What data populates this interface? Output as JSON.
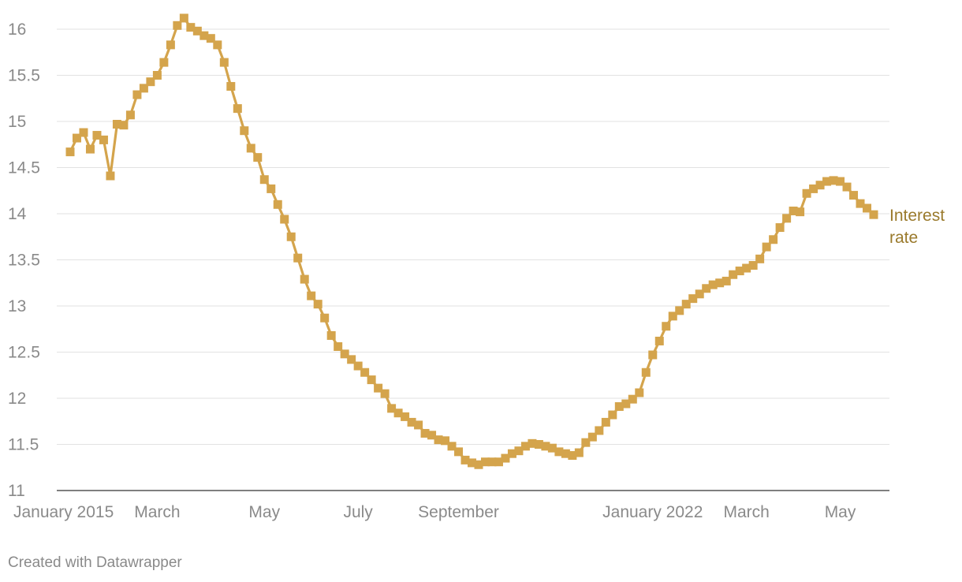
{
  "chart_data": {
    "type": "line",
    "title": "",
    "xlabel": "",
    "ylabel": "",
    "ylim": [
      11,
      16.2
    ],
    "yticks": [
      11,
      11.5,
      12,
      12.5,
      13,
      13.5,
      14,
      14.5,
      15,
      15.5,
      16
    ],
    "xticks": [
      {
        "label": "January 2015",
        "index": 0
      },
      {
        "label": "March",
        "index": 13
      },
      {
        "label": "May",
        "index": 29
      },
      {
        "label": "July",
        "index": 43
      },
      {
        "label": "September",
        "index": 58
      },
      {
        "label": "January 2022",
        "index": 87
      },
      {
        "label": "March",
        "index": 101
      },
      {
        "label": "May",
        "index": 115
      }
    ],
    "grid": true,
    "series": [
      {
        "name": "Interest rate",
        "color": "#d4a44c",
        "label_color": "#9a7a2c",
        "marker": "square",
        "values": [
          14.67,
          14.82,
          14.88,
          14.7,
          14.85,
          14.8,
          14.41,
          14.97,
          14.96,
          15.07,
          15.29,
          15.36,
          15.43,
          15.5,
          15.64,
          15.83,
          16.04,
          16.12,
          16.02,
          15.98,
          15.93,
          15.9,
          15.83,
          15.64,
          15.38,
          15.14,
          14.9,
          14.71,
          14.61,
          14.37,
          14.27,
          14.1,
          13.94,
          13.75,
          13.52,
          13.29,
          13.11,
          13.02,
          12.87,
          12.68,
          12.56,
          12.48,
          12.42,
          12.35,
          12.28,
          12.2,
          12.11,
          12.05,
          11.89,
          11.84,
          11.8,
          11.74,
          11.71,
          11.62,
          11.6,
          11.55,
          11.54,
          11.48,
          11.42,
          11.33,
          11.3,
          11.28,
          11.31,
          11.31,
          11.31,
          11.35,
          11.4,
          11.43,
          11.48,
          11.51,
          11.5,
          11.48,
          11.46,
          11.42,
          11.4,
          11.38,
          11.41,
          11.52,
          11.58,
          11.65,
          11.74,
          11.82,
          11.91,
          11.94,
          11.99,
          12.06,
          12.28,
          12.47,
          12.62,
          12.78,
          12.89,
          12.95,
          13.02,
          13.08,
          13.13,
          13.19,
          13.23,
          13.25,
          13.27,
          13.34,
          13.38,
          13.41,
          13.44,
          13.51,
          13.64,
          13.72,
          13.85,
          13.95,
          14.03,
          14.02,
          14.22,
          14.27,
          14.31,
          14.35,
          14.36,
          14.35,
          14.29,
          14.2,
          14.11,
          14.06,
          13.99
        ]
      }
    ]
  },
  "credit": "Created with Datawrapper"
}
